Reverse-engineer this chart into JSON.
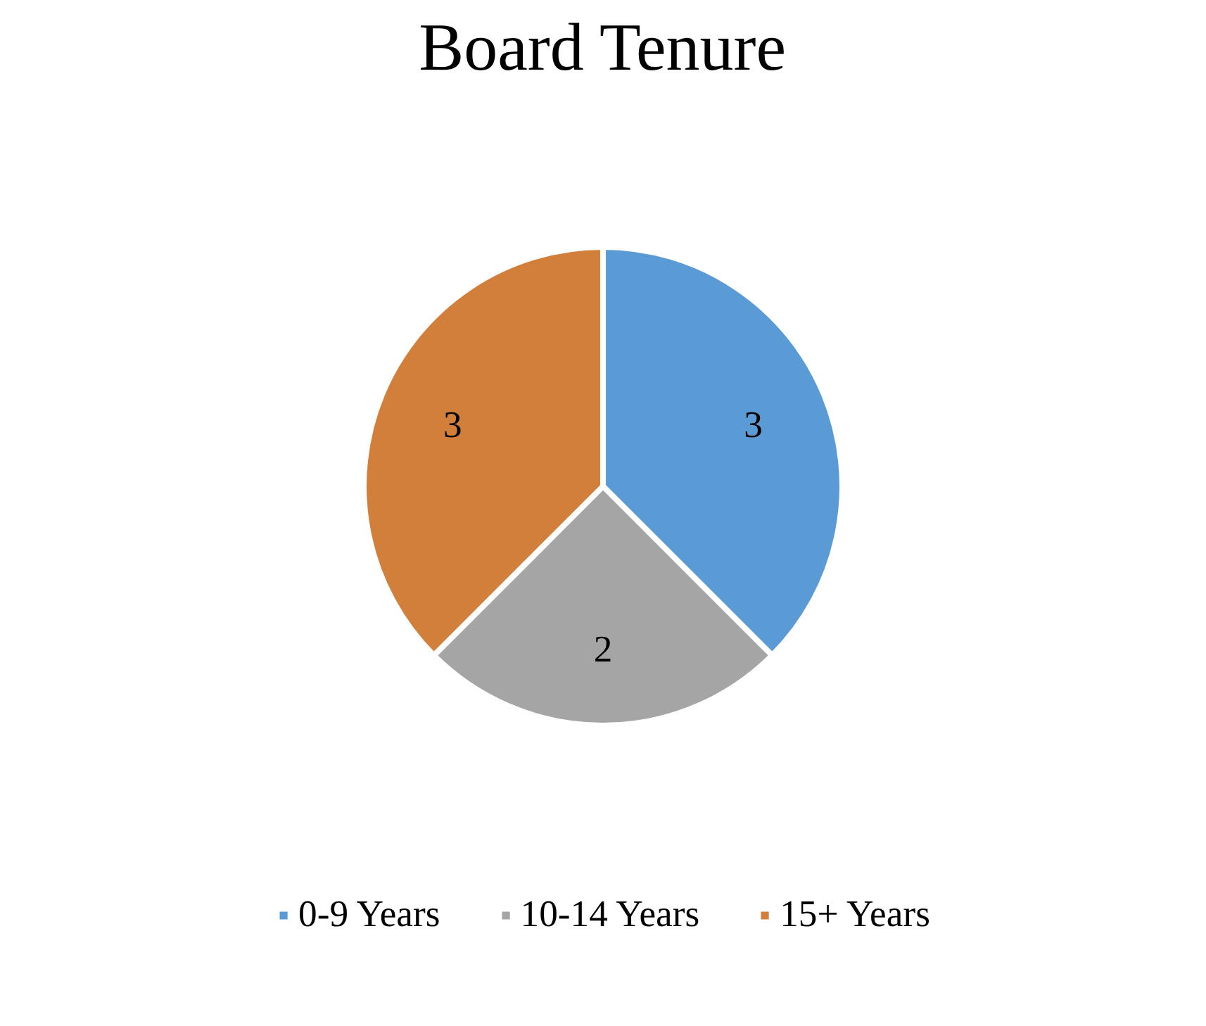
{
  "chart_data": {
    "type": "pie",
    "title": "Board Tenure",
    "categories": [
      "0-9 Years",
      "10-14 Years",
      "15+ Years"
    ],
    "values": [
      3,
      2,
      3
    ],
    "colors": [
      "#5b9bd5",
      "#a5a5a5",
      "#d27f3c"
    ],
    "data_labels": true,
    "legend": "bottom"
  }
}
